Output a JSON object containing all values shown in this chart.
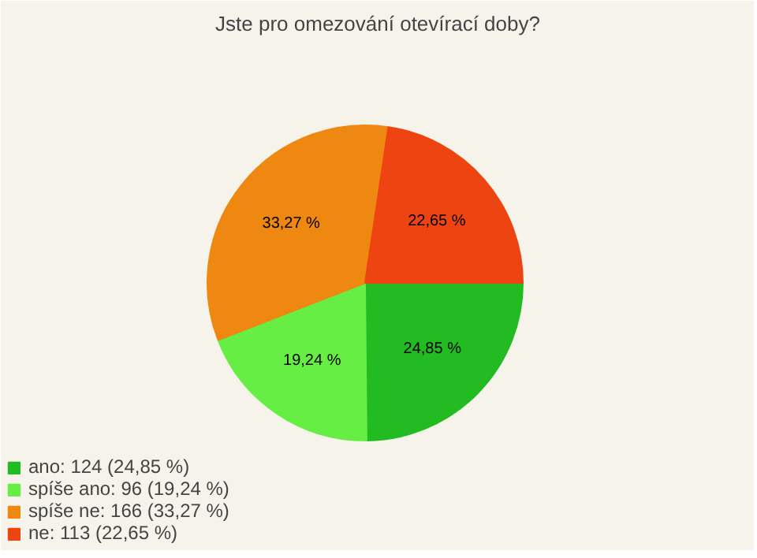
{
  "chart_data": {
    "type": "pie",
    "title": "Jste pro omezování otevírací doby?",
    "categories": [
      "ano: 124 (24,85 %)",
      "spíše ano: 96 (19,24 %)",
      "spíše ne: 166 (33,27 %)",
      "ne: 113 (22,65 %)"
    ],
    "values": [
      24.85,
      19.24,
      33.27,
      22.65
    ],
    "colors": [
      "#22bb22",
      "#66ee44",
      "#ee8811",
      "#ee4411"
    ],
    "value_labels": [
      "24,85 %",
      "19,24 %",
      "33,27 %",
      "22,65 %"
    ],
    "legend": "bottom left"
  }
}
